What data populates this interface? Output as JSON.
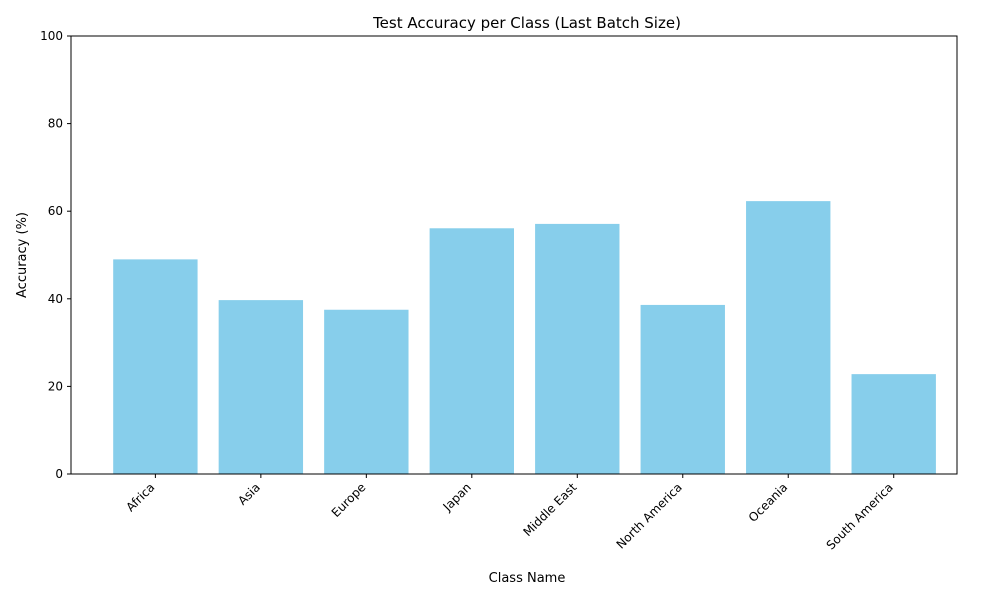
{
  "chart_data": {
    "type": "bar",
    "title": "Test Accuracy per Class (Last Batch Size)",
    "xlabel": "Class Name",
    "ylabel": "Accuracy (%)",
    "categories": [
      "Africa",
      "Asia",
      "Europe",
      "Japan",
      "Middle East",
      "North America",
      "Oceania",
      "South America"
    ],
    "values": [
      49.0,
      39.7,
      37.5,
      56.1,
      57.1,
      38.6,
      62.3,
      22.8
    ],
    "ylim": [
      0,
      100
    ],
    "yticks": [
      "0",
      "20",
      "40",
      "60",
      "80",
      "100"
    ],
    "bar_color": "#87ceeb",
    "grid": false,
    "x_tick_rotation": 45
  }
}
